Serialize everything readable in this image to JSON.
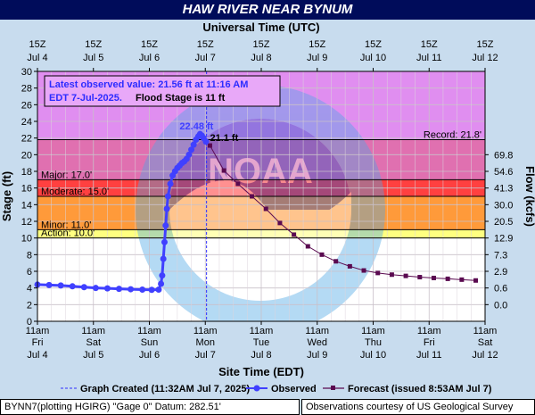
{
  "title": "HAW RIVER NEAR BYNUM",
  "info_box": {
    "line1": "Latest observed value: 21.56 ft at 11:16 AM",
    "line2a": "EDT 7-Jul-2025.",
    "line2b": "Flood Stage is 11 ft"
  },
  "watermark": "NOAA",
  "legend": {
    "graph_created": "Graph Created (11:32AM Jul 7, 2025)",
    "observed": "Observed",
    "forecast": "Forecast (issued 8:53AM Jul 7)"
  },
  "footer": {
    "left": "BYNN7(plotting HGIRG) \"Gage 0\" Datum: 282.51'",
    "right": "Observations courtesy of US Geological Survey"
  },
  "colors": {
    "observed": "#4040ff",
    "forecast": "#5a0a50",
    "record_zone": "#e08ef0",
    "major_zone": "#e070b0",
    "major_band": "#ff4040",
    "moderate_band": "#ff9a3a",
    "minor_band": "#ffff80",
    "title_bar": "#000c5a"
  },
  "chart_data": {
    "type": "line",
    "title": "HAW RIVER NEAR BYNUM",
    "xlabel": "Site Time (EDT)",
    "x2label": "Universal Time (UTC)",
    "ylabel": "Stage (ft)",
    "y2label": "Flow (kcfs)",
    "ylim": [
      0,
      30
    ],
    "xlim": [
      "2025-07-04T11:00",
      "2025-07-12T11:00"
    ],
    "y_ticks": [
      0,
      2,
      4,
      6,
      8,
      10,
      12,
      14,
      16,
      18,
      20,
      22,
      24,
      26,
      28,
      30
    ],
    "x_ticks_bottom": [
      {
        "time": "11am",
        "day": "Fri",
        "date": "Jul 4"
      },
      {
        "time": "11am",
        "day": "Sat",
        "date": "Jul 5"
      },
      {
        "time": "11am",
        "day": "Sun",
        "date": "Jul 6"
      },
      {
        "time": "11am",
        "day": "Mon",
        "date": "Jul 7"
      },
      {
        "time": "11am",
        "day": "Tue",
        "date": "Jul 8"
      },
      {
        "time": "11am",
        "day": "Wed",
        "date": "Jul 9"
      },
      {
        "time": "11am",
        "day": "Thu",
        "date": "Jul 10"
      },
      {
        "time": "11am",
        "day": "Fri",
        "date": "Jul 11"
      },
      {
        "time": "11am",
        "day": "Sat",
        "date": "Jul 12"
      }
    ],
    "x_ticks_top": [
      {
        "time": "15Z",
        "date": "Jul  4"
      },
      {
        "time": "15Z",
        "date": "Jul  5"
      },
      {
        "time": "15Z",
        "date": "Jul  6"
      },
      {
        "time": "15Z",
        "date": "Jul  7"
      },
      {
        "time": "15Z",
        "date": "Jul  8"
      },
      {
        "time": "15Z",
        "date": "Jul  9"
      },
      {
        "time": "15Z",
        "date": "Jul 10"
      },
      {
        "time": "15Z",
        "date": "Jul 11"
      },
      {
        "time": "15Z",
        "date": "Jul 12"
      }
    ],
    "flow_ticks": [
      {
        "stage": 20,
        "label": "69.8"
      },
      {
        "stage": 18,
        "label": "54.6"
      },
      {
        "stage": 16,
        "label": "41.3"
      },
      {
        "stage": 14,
        "label": "30.0"
      },
      {
        "stage": 12,
        "label": "20.5"
      },
      {
        "stage": 10,
        "label": "12.9"
      },
      {
        "stage": 8,
        "label": "7.3"
      },
      {
        "stage": 6,
        "label": "2.9"
      },
      {
        "stage": 4,
        "label": "0.6"
      },
      {
        "stage": 2,
        "label": "0.0"
      }
    ],
    "thresholds": [
      {
        "name": "Record",
        "label": "Record: 21.8'",
        "value": 21.8
      },
      {
        "name": "Major",
        "label": "Major: 17.0'",
        "value": 17.0
      },
      {
        "name": "Moderate",
        "label": "Moderate: 15.0'",
        "value": 15.0
      },
      {
        "name": "Minor",
        "label": "Minor: 11.0'",
        "value": 11.0
      },
      {
        "name": "Action",
        "label": "Action: 10.0'",
        "value": 10.0
      }
    ],
    "annotations": [
      {
        "text": "22.48 ft",
        "x": "2025-07-07T08:45",
        "y": 22.48,
        "series": "Observed"
      },
      {
        "text": "21.1 ft",
        "x": "2025-07-07T13:00",
        "y": 21.1,
        "series": "Forecast"
      }
    ],
    "graph_created": "2025-07-07T11:32",
    "series": [
      {
        "name": "Observed",
        "points": [
          [
            "2025-07-04T11:00",
            4.4
          ],
          [
            "2025-07-04T16:00",
            4.35
          ],
          [
            "2025-07-04T21:00",
            4.3
          ],
          [
            "2025-07-05T02:00",
            4.2
          ],
          [
            "2025-07-05T07:00",
            4.1
          ],
          [
            "2025-07-05T12:00",
            4.0
          ],
          [
            "2025-07-05T17:00",
            3.95
          ],
          [
            "2025-07-05T22:00",
            3.9
          ],
          [
            "2025-07-06T03:00",
            3.85
          ],
          [
            "2025-07-06T08:00",
            3.8
          ],
          [
            "2025-07-06T12:00",
            3.78
          ],
          [
            "2025-07-06T15:00",
            3.8
          ],
          [
            "2025-07-06T16:00",
            4.5
          ],
          [
            "2025-07-06T16:30",
            5.5
          ],
          [
            "2025-07-06T17:00",
            7.5
          ],
          [
            "2025-07-06T17:30",
            9.5
          ],
          [
            "2025-07-06T18:00",
            11.5
          ],
          [
            "2025-07-06T18:30",
            13.5
          ],
          [
            "2025-07-06T19:00",
            15.0
          ],
          [
            "2025-07-06T20:00",
            16.5
          ],
          [
            "2025-07-06T21:00",
            17.5
          ],
          [
            "2025-07-06T22:00",
            18.0
          ],
          [
            "2025-07-06T23:00",
            18.4
          ],
          [
            "2025-07-07T00:00",
            18.7
          ],
          [
            "2025-07-07T01:00",
            19.0
          ],
          [
            "2025-07-07T02:00",
            19.2
          ],
          [
            "2025-07-07T03:00",
            19.5
          ],
          [
            "2025-07-07T04:00",
            20.0
          ],
          [
            "2025-07-07T05:00",
            20.6
          ],
          [
            "2025-07-07T06:00",
            21.2
          ],
          [
            "2025-07-07T07:00",
            21.8
          ],
          [
            "2025-07-07T08:00",
            22.2
          ],
          [
            "2025-07-07T08:45",
            22.48
          ],
          [
            "2025-07-07T09:30",
            22.3
          ],
          [
            "2025-07-07T10:15",
            22.0
          ],
          [
            "2025-07-07T11:16",
            21.56
          ]
        ]
      },
      {
        "name": "Forecast",
        "points": [
          [
            "2025-07-07T13:00",
            21.1
          ],
          [
            "2025-07-07T19:00",
            18.1
          ],
          [
            "2025-07-08T01:00",
            16.5
          ],
          [
            "2025-07-08T07:00",
            15.0
          ],
          [
            "2025-07-08T13:00",
            13.5
          ],
          [
            "2025-07-08T19:00",
            11.8
          ],
          [
            "2025-07-09T01:00",
            10.4
          ],
          [
            "2025-07-09T07:00",
            9.0
          ],
          [
            "2025-07-09T13:00",
            8.0
          ],
          [
            "2025-07-09T19:00",
            7.2
          ],
          [
            "2025-07-10T01:00",
            6.6
          ],
          [
            "2025-07-10T07:00",
            6.1
          ],
          [
            "2025-07-10T13:00",
            5.8
          ],
          [
            "2025-07-10T19:00",
            5.6
          ],
          [
            "2025-07-11T01:00",
            5.45
          ],
          [
            "2025-07-11T07:00",
            5.3
          ],
          [
            "2025-07-11T13:00",
            5.2
          ],
          [
            "2025-07-11T19:00",
            5.1
          ],
          [
            "2025-07-12T01:00",
            5.0
          ],
          [
            "2025-07-12T07:00",
            4.9
          ]
        ]
      }
    ]
  }
}
